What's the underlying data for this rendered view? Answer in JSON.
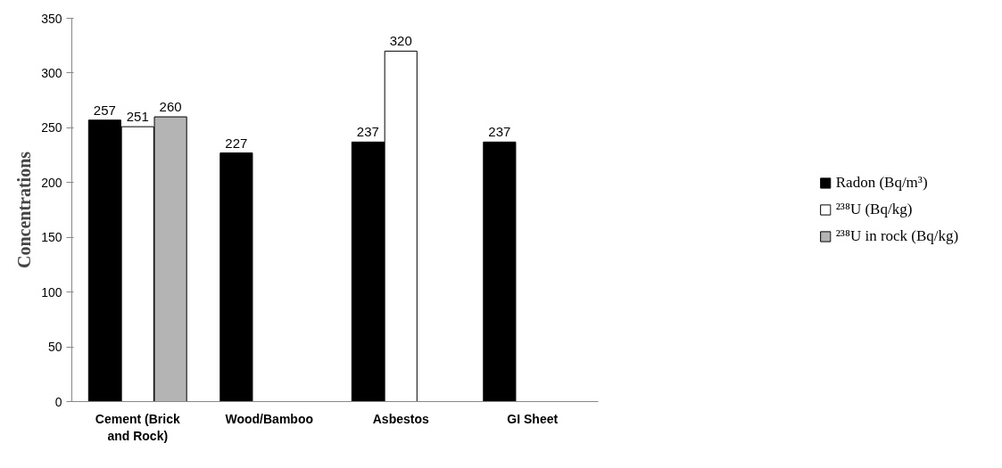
{
  "chart_data": {
    "type": "bar",
    "ylabel": "Concentrations",
    "categories": [
      "Cement (Brick and Rock)",
      "Wood/Bamboo",
      "Asbestos",
      "GI Sheet"
    ],
    "series": [
      {
        "name": "Radon (Bq/m³)",
        "color": "#000000",
        "values": [
          257,
          227,
          237,
          237
        ]
      },
      {
        "name": "²³⁸U (Bq/kg)",
        "color": "#ffffff",
        "values": [
          251,
          null,
          320,
          null
        ]
      },
      {
        "name": "²³⁸U in rock (Bq/kg)",
        "color": "#b4b4b4",
        "values": [
          260,
          null,
          null,
          null
        ]
      }
    ],
    "ylim": [
      0,
      350
    ],
    "yticks": [
      0,
      50,
      100,
      150,
      200,
      250,
      300,
      350
    ],
    "data_labels": true,
    "grid": false,
    "legend": "right"
  }
}
